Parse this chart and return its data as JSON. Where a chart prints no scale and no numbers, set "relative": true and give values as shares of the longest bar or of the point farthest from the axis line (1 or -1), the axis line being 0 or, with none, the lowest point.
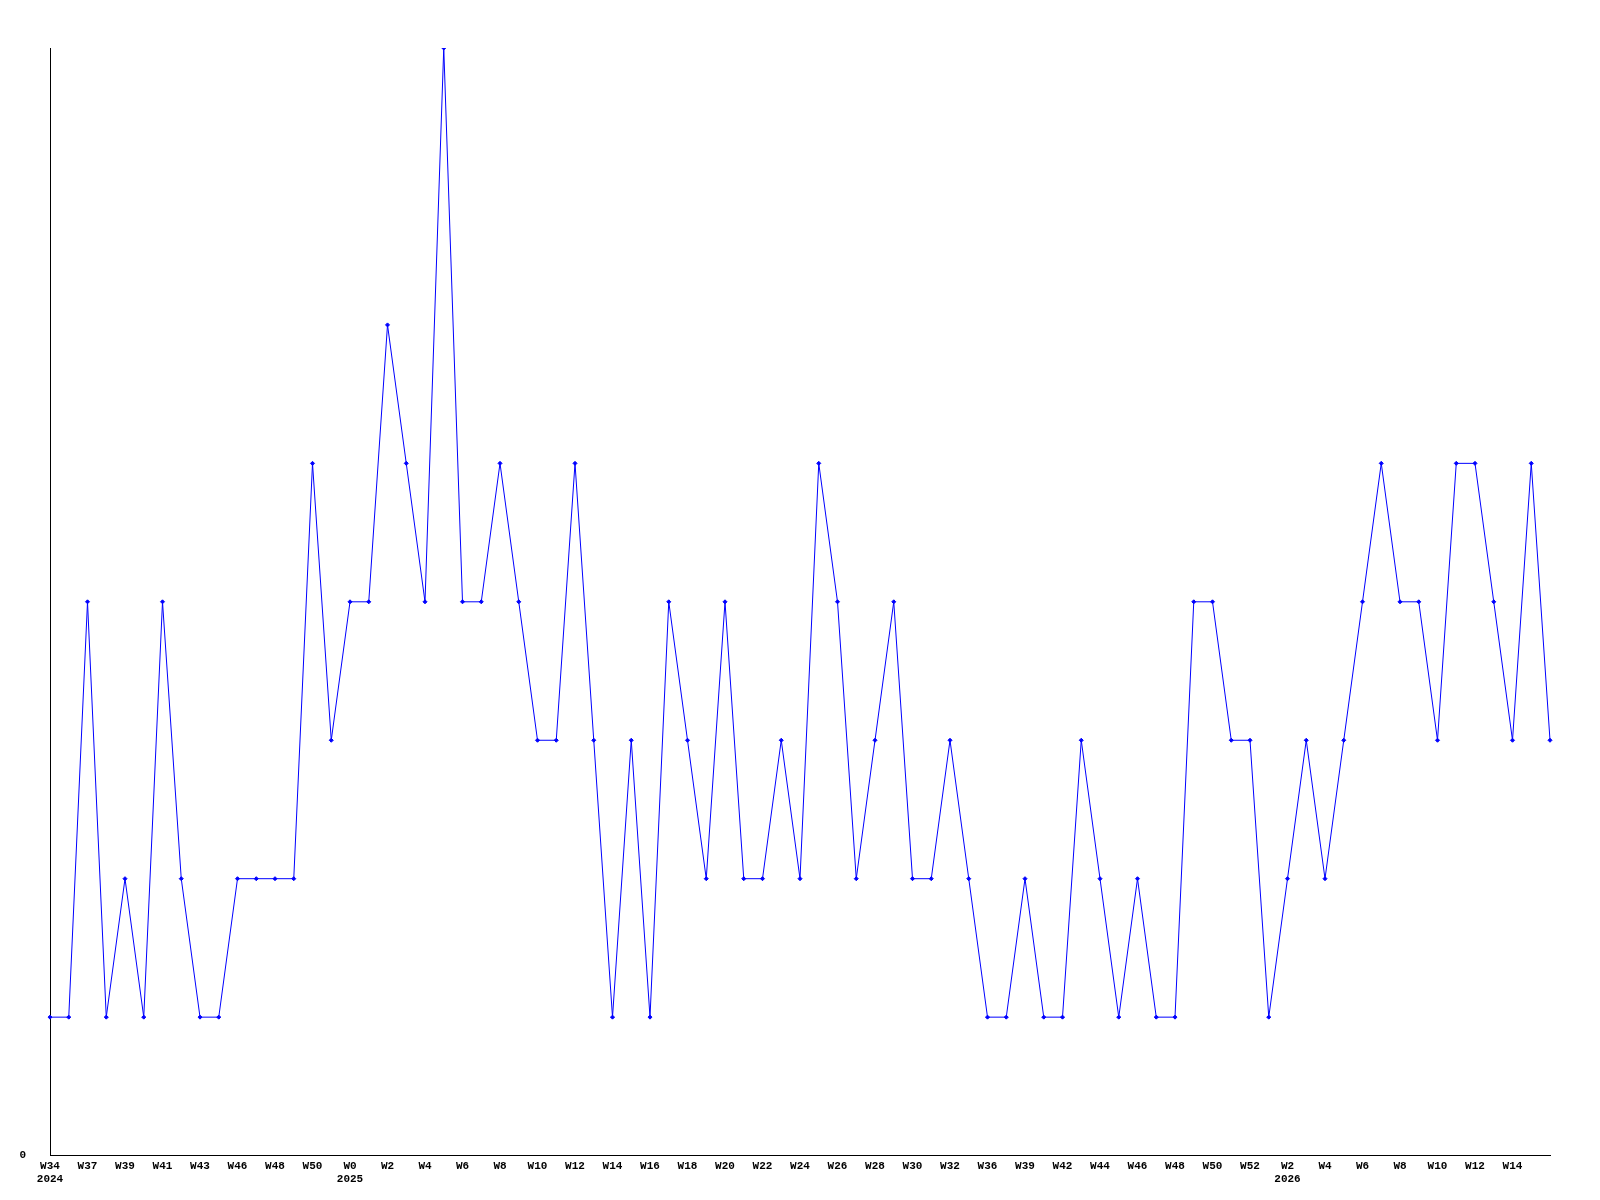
{
  "chart_data": {
    "type": "line",
    "relative": true,
    "marker": "diamond",
    "legend": false,
    "grid": false,
    "annotations": [
      "0"
    ],
    "categories": [
      "W34\n2024",
      null,
      "W37",
      null,
      "W39",
      null,
      "W41",
      null,
      "W43",
      null,
      "W46",
      null,
      "W48",
      null,
      "W50",
      null,
      "W0\n2025",
      null,
      "W2",
      null,
      "W4",
      null,
      "W6",
      null,
      "W8",
      null,
      "W10",
      null,
      "W12",
      null,
      "W14",
      null,
      "W16",
      null,
      "W18",
      null,
      "W20",
      null,
      "W22",
      null,
      "W24",
      null,
      "W26",
      null,
      "W28",
      null,
      "W30",
      null,
      "W32",
      null,
      "W36",
      null,
      "W39",
      null,
      "W42",
      null,
      "W44",
      null,
      "W46",
      null,
      "W48",
      null,
      "W50",
      null,
      "W52",
      null,
      "W2\n2026",
      null,
      "W4",
      null,
      "W6",
      null,
      "W8",
      null,
      "W10",
      null,
      "W12",
      null,
      "W14",
      null,
      null
    ],
    "series": [
      {
        "color": "#0000ff",
        "values": [
          0.125,
          0.125,
          0.5,
          0.125,
          0.25,
          0.125,
          0.5,
          0.25,
          0.125,
          0.125,
          0.25,
          0.25,
          0.25,
          0.25,
          0.625,
          0.375,
          0.5,
          0.5,
          0.75,
          0.625,
          0.5,
          1,
          0.5,
          0.5,
          0.625,
          0.5,
          0.375,
          0.375,
          0.625,
          0.375,
          0.125,
          0.375,
          0.125,
          0.5,
          0.375,
          0.25,
          0.5,
          0.25,
          0.25,
          0.375,
          0.25,
          0.625,
          0.5,
          0.25,
          0.375,
          0.5,
          0.25,
          0.25,
          0.375,
          0.25,
          0.125,
          0.125,
          0.25,
          0.125,
          0.125,
          0.375,
          0.25,
          0.125,
          0.25,
          0.125,
          0.125,
          0.5,
          0.5,
          0.375,
          0.375,
          0.125,
          0.25,
          0.375,
          0.25,
          0.375,
          0.5,
          0.625,
          0.5,
          0.5,
          0.375,
          0.625,
          0.625,
          0.5,
          0.375,
          0.625,
          0.375
        ]
      }
    ]
  }
}
